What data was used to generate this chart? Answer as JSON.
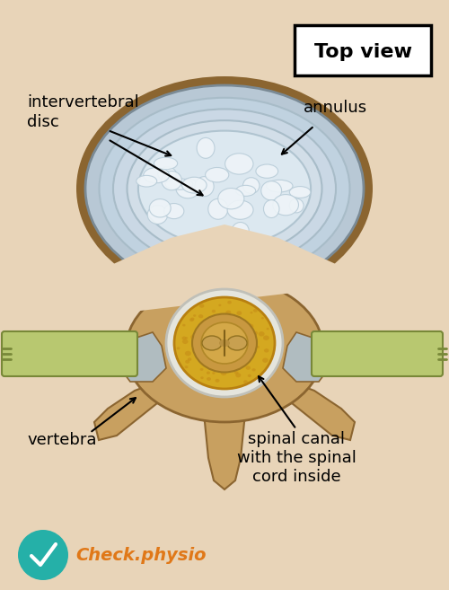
{
  "background_color": "#e8d4b8",
  "title_text": "Top view",
  "labels": {
    "intervertebral_disc": "intervertebral\ndisc",
    "annulus": "annulus",
    "vertebra": "vertebra",
    "spinal_canal": "spinal canal\nwith the spinal\ncord inside"
  },
  "colors": {
    "disc_annulus_outer": "#b8c8d5",
    "disc_annulus_mid": "#c8d8e5",
    "disc_annulus_inner_ring": "#ccd8e2",
    "disc_nucleus": "#dde8f0",
    "disc_nucleus_cells": "#e8f0f8",
    "disc_nucleus_cell_edge": "#c0d0dc",
    "disc_outline": "#7a8a95",
    "vertebra_bone_light": "#c8a060",
    "vertebra_bone_dark": "#8b6530",
    "vertebra_bone_mid": "#b08840",
    "nerve_green_light": "#b8c870",
    "nerve_green_dark": "#788838",
    "spinal_canal_white": "#e8e8e0",
    "spinal_canal_gold": "#d4a820",
    "spinal_canal_gold_dark": "#b88010",
    "spinal_cord_outer": "#c8a050",
    "spinal_cord_inner": "#d0b060",
    "spinal_cord_center": "#c09848",
    "articular_grey": "#b0bcc0",
    "checkmark_teal": "#25b0a8",
    "checkmark_orange": "#e07818",
    "white": "#ffffff",
    "black": "#000000"
  },
  "logo_text": "Check.physio",
  "figsize": [
    5.0,
    6.57
  ],
  "dpi": 100
}
